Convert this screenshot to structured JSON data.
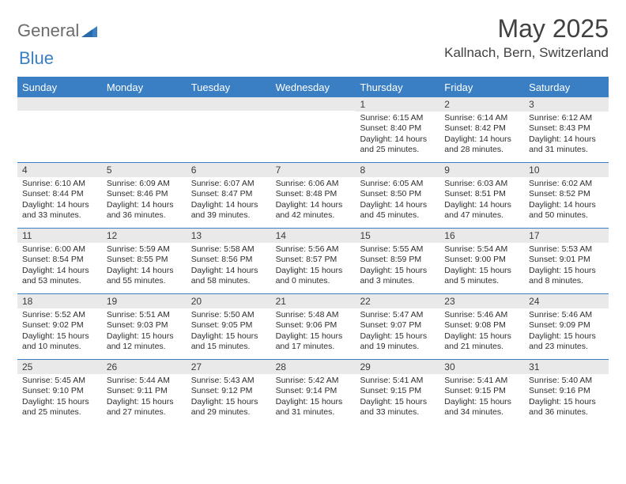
{
  "brand": {
    "word1": "General",
    "word2": "Blue"
  },
  "colors": {
    "accent": "#3a7fc4",
    "header_text": "#414141",
    "logo_gray": "#6b6b6b",
    "daynum_bg": "#e9e9e9",
    "text": "#2e2e2e",
    "white": "#ffffff"
  },
  "title": "May 2025",
  "location": "Kallnach, Bern, Switzerland",
  "day_names": [
    "Sunday",
    "Monday",
    "Tuesday",
    "Wednesday",
    "Thursday",
    "Friday",
    "Saturday"
  ],
  "weeks": [
    [
      {
        "day": "",
        "sunrise": "",
        "sunset": "",
        "daylight1": "",
        "daylight2": ""
      },
      {
        "day": "",
        "sunrise": "",
        "sunset": "",
        "daylight1": "",
        "daylight2": ""
      },
      {
        "day": "",
        "sunrise": "",
        "sunset": "",
        "daylight1": "",
        "daylight2": ""
      },
      {
        "day": "",
        "sunrise": "",
        "sunset": "",
        "daylight1": "",
        "daylight2": ""
      },
      {
        "day": "1",
        "sunrise": "Sunrise: 6:15 AM",
        "sunset": "Sunset: 8:40 PM",
        "daylight1": "Daylight: 14 hours",
        "daylight2": "and 25 minutes."
      },
      {
        "day": "2",
        "sunrise": "Sunrise: 6:14 AM",
        "sunset": "Sunset: 8:42 PM",
        "daylight1": "Daylight: 14 hours",
        "daylight2": "and 28 minutes."
      },
      {
        "day": "3",
        "sunrise": "Sunrise: 6:12 AM",
        "sunset": "Sunset: 8:43 PM",
        "daylight1": "Daylight: 14 hours",
        "daylight2": "and 31 minutes."
      }
    ],
    [
      {
        "day": "4",
        "sunrise": "Sunrise: 6:10 AM",
        "sunset": "Sunset: 8:44 PM",
        "daylight1": "Daylight: 14 hours",
        "daylight2": "and 33 minutes."
      },
      {
        "day": "5",
        "sunrise": "Sunrise: 6:09 AM",
        "sunset": "Sunset: 8:46 PM",
        "daylight1": "Daylight: 14 hours",
        "daylight2": "and 36 minutes."
      },
      {
        "day": "6",
        "sunrise": "Sunrise: 6:07 AM",
        "sunset": "Sunset: 8:47 PM",
        "daylight1": "Daylight: 14 hours",
        "daylight2": "and 39 minutes."
      },
      {
        "day": "7",
        "sunrise": "Sunrise: 6:06 AM",
        "sunset": "Sunset: 8:48 PM",
        "daylight1": "Daylight: 14 hours",
        "daylight2": "and 42 minutes."
      },
      {
        "day": "8",
        "sunrise": "Sunrise: 6:05 AM",
        "sunset": "Sunset: 8:50 PM",
        "daylight1": "Daylight: 14 hours",
        "daylight2": "and 45 minutes."
      },
      {
        "day": "9",
        "sunrise": "Sunrise: 6:03 AM",
        "sunset": "Sunset: 8:51 PM",
        "daylight1": "Daylight: 14 hours",
        "daylight2": "and 47 minutes."
      },
      {
        "day": "10",
        "sunrise": "Sunrise: 6:02 AM",
        "sunset": "Sunset: 8:52 PM",
        "daylight1": "Daylight: 14 hours",
        "daylight2": "and 50 minutes."
      }
    ],
    [
      {
        "day": "11",
        "sunrise": "Sunrise: 6:00 AM",
        "sunset": "Sunset: 8:54 PM",
        "daylight1": "Daylight: 14 hours",
        "daylight2": "and 53 minutes."
      },
      {
        "day": "12",
        "sunrise": "Sunrise: 5:59 AM",
        "sunset": "Sunset: 8:55 PM",
        "daylight1": "Daylight: 14 hours",
        "daylight2": "and 55 minutes."
      },
      {
        "day": "13",
        "sunrise": "Sunrise: 5:58 AM",
        "sunset": "Sunset: 8:56 PM",
        "daylight1": "Daylight: 14 hours",
        "daylight2": "and 58 minutes."
      },
      {
        "day": "14",
        "sunrise": "Sunrise: 5:56 AM",
        "sunset": "Sunset: 8:57 PM",
        "daylight1": "Daylight: 15 hours",
        "daylight2": "and 0 minutes."
      },
      {
        "day": "15",
        "sunrise": "Sunrise: 5:55 AM",
        "sunset": "Sunset: 8:59 PM",
        "daylight1": "Daylight: 15 hours",
        "daylight2": "and 3 minutes."
      },
      {
        "day": "16",
        "sunrise": "Sunrise: 5:54 AM",
        "sunset": "Sunset: 9:00 PM",
        "daylight1": "Daylight: 15 hours",
        "daylight2": "and 5 minutes."
      },
      {
        "day": "17",
        "sunrise": "Sunrise: 5:53 AM",
        "sunset": "Sunset: 9:01 PM",
        "daylight1": "Daylight: 15 hours",
        "daylight2": "and 8 minutes."
      }
    ],
    [
      {
        "day": "18",
        "sunrise": "Sunrise: 5:52 AM",
        "sunset": "Sunset: 9:02 PM",
        "daylight1": "Daylight: 15 hours",
        "daylight2": "and 10 minutes."
      },
      {
        "day": "19",
        "sunrise": "Sunrise: 5:51 AM",
        "sunset": "Sunset: 9:03 PM",
        "daylight1": "Daylight: 15 hours",
        "daylight2": "and 12 minutes."
      },
      {
        "day": "20",
        "sunrise": "Sunrise: 5:50 AM",
        "sunset": "Sunset: 9:05 PM",
        "daylight1": "Daylight: 15 hours",
        "daylight2": "and 15 minutes."
      },
      {
        "day": "21",
        "sunrise": "Sunrise: 5:48 AM",
        "sunset": "Sunset: 9:06 PM",
        "daylight1": "Daylight: 15 hours",
        "daylight2": "and 17 minutes."
      },
      {
        "day": "22",
        "sunrise": "Sunrise: 5:47 AM",
        "sunset": "Sunset: 9:07 PM",
        "daylight1": "Daylight: 15 hours",
        "daylight2": "and 19 minutes."
      },
      {
        "day": "23",
        "sunrise": "Sunrise: 5:46 AM",
        "sunset": "Sunset: 9:08 PM",
        "daylight1": "Daylight: 15 hours",
        "daylight2": "and 21 minutes."
      },
      {
        "day": "24",
        "sunrise": "Sunrise: 5:46 AM",
        "sunset": "Sunset: 9:09 PM",
        "daylight1": "Daylight: 15 hours",
        "daylight2": "and 23 minutes."
      }
    ],
    [
      {
        "day": "25",
        "sunrise": "Sunrise: 5:45 AM",
        "sunset": "Sunset: 9:10 PM",
        "daylight1": "Daylight: 15 hours",
        "daylight2": "and 25 minutes."
      },
      {
        "day": "26",
        "sunrise": "Sunrise: 5:44 AM",
        "sunset": "Sunset: 9:11 PM",
        "daylight1": "Daylight: 15 hours",
        "daylight2": "and 27 minutes."
      },
      {
        "day": "27",
        "sunrise": "Sunrise: 5:43 AM",
        "sunset": "Sunset: 9:12 PM",
        "daylight1": "Daylight: 15 hours",
        "daylight2": "and 29 minutes."
      },
      {
        "day": "28",
        "sunrise": "Sunrise: 5:42 AM",
        "sunset": "Sunset: 9:14 PM",
        "daylight1": "Daylight: 15 hours",
        "daylight2": "and 31 minutes."
      },
      {
        "day": "29",
        "sunrise": "Sunrise: 5:41 AM",
        "sunset": "Sunset: 9:15 PM",
        "daylight1": "Daylight: 15 hours",
        "daylight2": "and 33 minutes."
      },
      {
        "day": "30",
        "sunrise": "Sunrise: 5:41 AM",
        "sunset": "Sunset: 9:15 PM",
        "daylight1": "Daylight: 15 hours",
        "daylight2": "and 34 minutes."
      },
      {
        "day": "31",
        "sunrise": "Sunrise: 5:40 AM",
        "sunset": "Sunset: 9:16 PM",
        "daylight1": "Daylight: 15 hours",
        "daylight2": "and 36 minutes."
      }
    ]
  ]
}
